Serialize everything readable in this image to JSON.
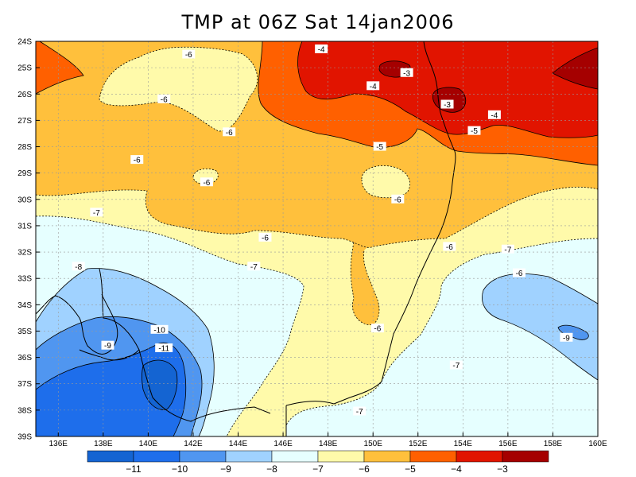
{
  "title": "TMP at 06Z Sat 14jan2006",
  "colors": {
    "c_lt11": "#1464d2",
    "c_11_10": "#1e6eeb",
    "c_10_9": "#5096f0",
    "c_9_8": "#a0d2ff",
    "c_8_7": "#e6ffff",
    "c_7_6": "#fffaaa",
    "c_6_5": "#ffc03c",
    "c_5_4": "#ff6000",
    "c_4_3": "#e11400",
    "c_gt3": "#a50000"
  },
  "chart_data": {
    "type": "heatmap",
    "variable": "TMP",
    "x_axis": {
      "range": [
        135,
        160
      ],
      "ticks": [
        "136E",
        "138E",
        "140E",
        "142E",
        "144E",
        "146E",
        "148E",
        "150E",
        "152E",
        "154E",
        "156E",
        "158E",
        "160E"
      ]
    },
    "y_axis": {
      "range": [
        -39,
        -24
      ],
      "ticks": [
        "24S",
        "25S",
        "26S",
        "27S",
        "28S",
        "29S",
        "30S",
        "31S",
        "32S",
        "33S",
        "34S",
        "35S",
        "36S",
        "37S",
        "38S",
        "39S"
      ]
    },
    "grid": true,
    "legend": {
      "placement": "bottom",
      "levels": [
        -11,
        -10,
        -9,
        -8,
        -7,
        -6,
        -5,
        -4,
        -3
      ],
      "labels": [
        "−11",
        "−10",
        "−9",
        "−8",
        "−7",
        "−6",
        "−5",
        "−4",
        "−3"
      ]
    },
    "contour_labels": [
      {
        "text": "-4",
        "lon": 147.7,
        "lat": -24.3
      },
      {
        "text": "-3",
        "lon": 151.5,
        "lat": -25.2
      },
      {
        "text": "-6",
        "lon": 141.8,
        "lat": -24.5
      },
      {
        "text": "-4",
        "lon": 150.0,
        "lat": -25.7
      },
      {
        "text": "-3",
        "lon": 153.3,
        "lat": -26.4
      },
      {
        "text": "-6",
        "lon": 140.7,
        "lat": -26.2
      },
      {
        "text": "-4",
        "lon": 155.4,
        "lat": -26.8
      },
      {
        "text": "-5",
        "lon": 154.5,
        "lat": -27.4
      },
      {
        "text": "-6",
        "lon": 143.6,
        "lat": -27.45
      },
      {
        "text": "-5",
        "lon": 150.3,
        "lat": -28.0
      },
      {
        "text": "-6",
        "lon": 139.5,
        "lat": -28.5
      },
      {
        "text": "-6",
        "lon": 142.6,
        "lat": -29.35
      },
      {
        "text": "-6",
        "lon": 151.1,
        "lat": -30.0
      },
      {
        "text": "-7",
        "lon": 137.7,
        "lat": -30.5
      },
      {
        "text": "-6",
        "lon": 145.2,
        "lat": -31.45
      },
      {
        "text": "-6",
        "lon": 153.4,
        "lat": -31.8
      },
      {
        "text": "-7",
        "lon": 156.0,
        "lat": -31.9
      },
      {
        "text": "-8",
        "lon": 136.9,
        "lat": -32.55
      },
      {
        "text": "-7",
        "lon": 144.7,
        "lat": -32.55
      },
      {
        "text": "-6",
        "lon": 156.5,
        "lat": -32.8
      },
      {
        "text": "-6",
        "lon": 150.2,
        "lat": -34.9
      },
      {
        "text": "-10",
        "lon": 140.5,
        "lat": -34.95
      },
      {
        "text": "-9",
        "lon": 158.6,
        "lat": -35.25
      },
      {
        "text": "-9",
        "lon": 138.2,
        "lat": -35.55
      },
      {
        "text": "-11",
        "lon": 140.7,
        "lat": -35.65
      },
      {
        "text": "-7",
        "lon": 153.7,
        "lat": -36.3
      },
      {
        "text": "-7",
        "lon": 149.4,
        "lat": -38.05
      }
    ]
  }
}
